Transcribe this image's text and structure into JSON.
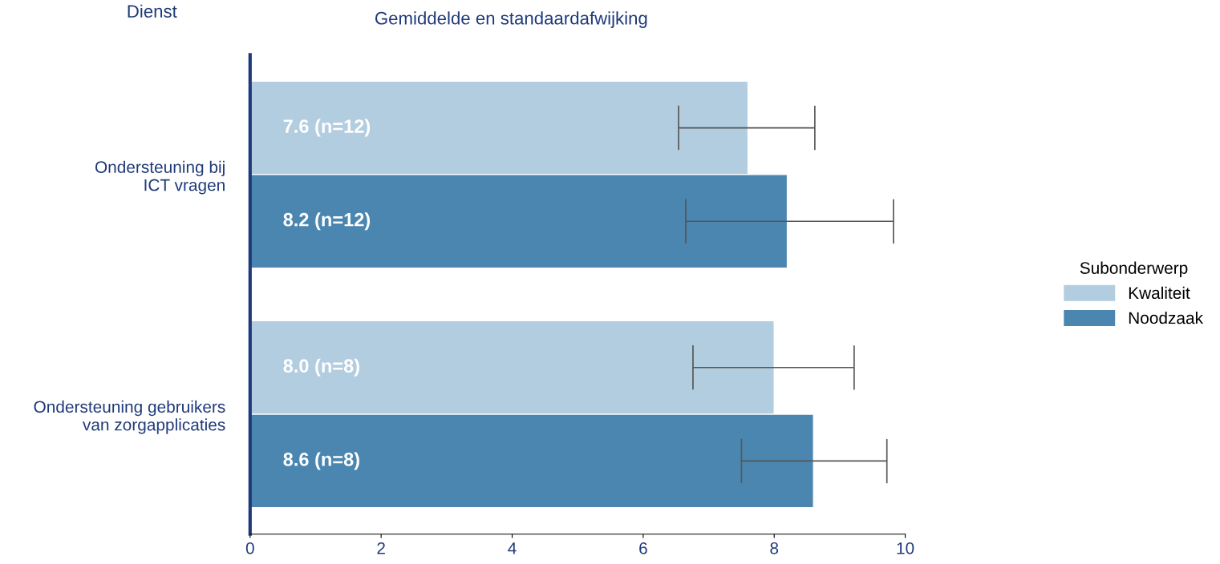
{
  "chart_data": {
    "type": "bar",
    "orientation": "horizontal",
    "title": "Gemiddelde en standaardafwijking",
    "ylabel": "Dienst",
    "legend_title": "Subonderwerp",
    "legend": "right",
    "categories": [
      "Ondersteuning bij\nICT vragen",
      "Ondersteuning gebruikers\nvan zorgapplicaties"
    ],
    "series": [
      {
        "name": "Kwaliteit",
        "color": "#b3cde0",
        "values": [
          7.6,
          8.0
        ],
        "errors": [
          [
            6.54,
            8.62
          ],
          [
            6.76,
            9.22
          ]
        ],
        "value_labels": [
          "7.6 (n=12)",
          "8.0 (n=8)"
        ]
      },
      {
        "name": "Noodzaak",
        "color": "#4a86b0",
        "values": [
          8.2,
          8.6
        ],
        "errors": [
          [
            6.65,
            9.82
          ],
          [
            7.5,
            9.72
          ]
        ],
        "value_labels": [
          "8.2 (n=12)",
          "8.6 (n=8)"
        ]
      }
    ],
    "xlim": [
      0,
      10
    ],
    "xticks": [
      0,
      2,
      4,
      6,
      8,
      10
    ],
    "grid": false
  }
}
